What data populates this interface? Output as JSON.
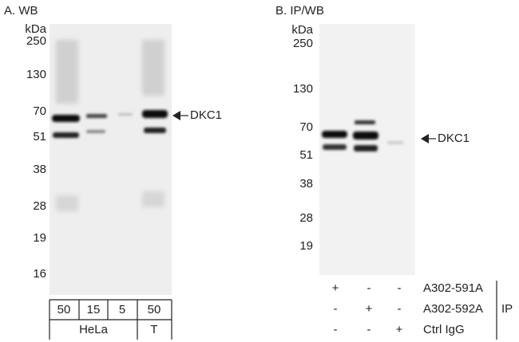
{
  "panels": [
    {
      "title": "A. WB",
      "unit": "kDa",
      "markers": [
        "250",
        "130",
        "70",
        "51",
        "38",
        "28",
        "19",
        "16"
      ],
      "target": "DKC1",
      "lane_loads": [
        "50",
        "15",
        "5",
        "50"
      ],
      "groups": [
        "HeLa",
        "T"
      ]
    },
    {
      "title": "B. IP/WB",
      "unit": "kDa",
      "markers": [
        "250",
        "130",
        "70",
        "51",
        "38",
        "28",
        "19"
      ],
      "target": "DKC1",
      "rows": [
        {
          "label": "A302-591A",
          "lanes": [
            "+",
            "-",
            "-"
          ]
        },
        {
          "label": "A302-592A",
          "lanes": [
            "-",
            "+",
            "-"
          ]
        },
        {
          "label": "Ctrl IgG",
          "lanes": [
            "-",
            "-",
            "+"
          ]
        }
      ],
      "ip_label": "IP"
    }
  ]
}
